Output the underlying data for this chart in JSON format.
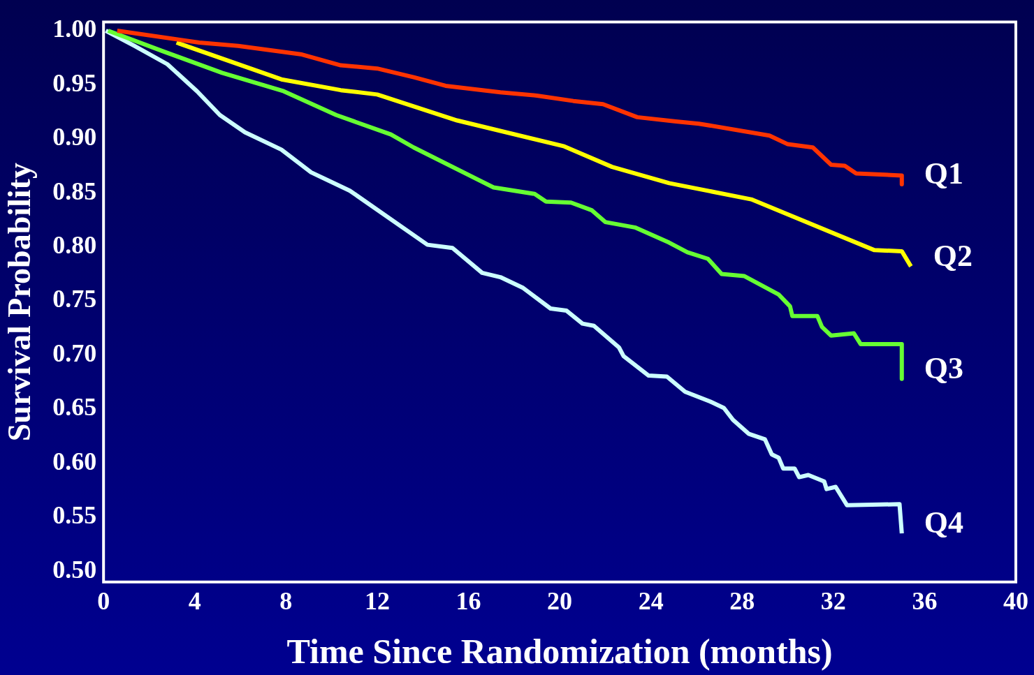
{
  "chart_data": {
    "type": "line",
    "xlabel": "Time Since Randomization (months)",
    "ylabel": "Survival Probability",
    "xlim": [
      0,
      40
    ],
    "xticks": [
      0,
      4,
      8,
      12,
      16,
      20,
      24,
      28,
      32,
      36,
      40
    ],
    "ylim": [
      0.49,
      1.008
    ],
    "yticks": [
      {
        "value": 0.5,
        "label": "0.50"
      },
      {
        "value": 0.55,
        "label": "0.55"
      },
      {
        "value": 0.6,
        "label": "0.60"
      },
      {
        "value": 0.65,
        "label": "0.65"
      },
      {
        "value": 0.7,
        "label": "0.70"
      },
      {
        "value": 0.75,
        "label": "0.75"
      },
      {
        "value": 0.8,
        "label": "0.80"
      },
      {
        "value": 0.85,
        "label": "0.85"
      },
      {
        "value": 0.9,
        "label": "0.90"
      },
      {
        "value": 0.95,
        "label": "0.95"
      },
      {
        "value": 1.0,
        "label": "1.00"
      }
    ],
    "grid": false,
    "legend": false,
    "marker": "none",
    "line_style": "solid",
    "series": [
      {
        "name": "Q1",
        "color": "#ff3300",
        "x": [
          0.6,
          4.2,
          5.9,
          8.7,
          10.4,
          12.0,
          13.6,
          15.0,
          17.4,
          19.0,
          20.6,
          21.9,
          23.4,
          25.1,
          26.1,
          29.2,
          30.0,
          31.1,
          31.9,
          32.5,
          33.0,
          35.0,
          35.0
        ],
        "values": [
          1.0,
          0.989,
          0.986,
          0.978,
          0.968,
          0.965,
          0.957,
          0.949,
          0.943,
          0.94,
          0.935,
          0.932,
          0.92,
          0.916,
          0.914,
          0.903,
          0.895,
          0.892,
          0.876,
          0.875,
          0.868,
          0.866,
          0.858
        ]
      },
      {
        "name": "Q2",
        "color": "#ffff00",
        "x": [
          3.2,
          7.8,
          10.4,
          12.0,
          15.5,
          20.2,
          22.3,
          24.8,
          28.4,
          33.8,
          35.0,
          35.4
        ],
        "values": [
          0.989,
          0.955,
          0.945,
          0.941,
          0.917,
          0.893,
          0.874,
          0.859,
          0.844,
          0.797,
          0.796,
          0.782
        ]
      },
      {
        "name": "Q3",
        "color": "#66ff33",
        "x": [
          0.2,
          2.6,
          5.2,
          7.9,
          10.2,
          12.6,
          13.6,
          17.1,
          18.9,
          19.4,
          20.5,
          21.4,
          22.0,
          23.3,
          24.8,
          25.6,
          26.5,
          27.1,
          28.1,
          29.6,
          30.1,
          30.2,
          31.3,
          31.5,
          31.9,
          32.9,
          33.2,
          35.0,
          35.0
        ],
        "values": [
          1.0,
          0.981,
          0.961,
          0.944,
          0.922,
          0.904,
          0.892,
          0.855,
          0.849,
          0.842,
          0.841,
          0.834,
          0.823,
          0.818,
          0.804,
          0.795,
          0.789,
          0.775,
          0.773,
          0.756,
          0.745,
          0.736,
          0.736,
          0.726,
          0.718,
          0.72,
          0.71,
          0.71,
          0.678
        ]
      },
      {
        "name": "Q4",
        "color": "#ccffff",
        "x": [
          0.1,
          1.35,
          2.8,
          4.1,
          5.1,
          6.2,
          7.8,
          9.1,
          10.8,
          14.2,
          15.3,
          16.6,
          17.4,
          18.4,
          19.6,
          20.3,
          21.0,
          21.5,
          22.6,
          22.8,
          23.9,
          24.7,
          25.5,
          26.6,
          27.2,
          27.6,
          28.3,
          29.0,
          29.3,
          29.6,
          29.8,
          30.3,
          30.5,
          30.9,
          31.6,
          31.7,
          32.1,
          32.6,
          34.9,
          35.0
        ],
        "values": [
          1.0,
          0.986,
          0.969,
          0.944,
          0.922,
          0.906,
          0.89,
          0.869,
          0.852,
          0.802,
          0.799,
          0.776,
          0.772,
          0.762,
          0.743,
          0.741,
          0.729,
          0.727,
          0.707,
          0.699,
          0.681,
          0.68,
          0.666,
          0.657,
          0.651,
          0.64,
          0.627,
          0.622,
          0.608,
          0.605,
          0.595,
          0.595,
          0.587,
          0.589,
          0.583,
          0.576,
          0.578,
          0.561,
          0.562,
          0.535
        ]
      }
    ]
  }
}
